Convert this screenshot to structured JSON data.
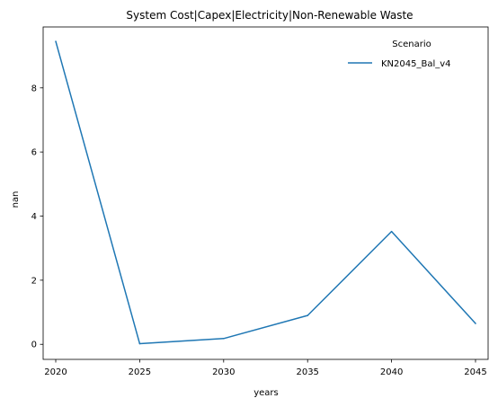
{
  "chart_data": {
    "type": "line",
    "title": "System Cost|Capex|Electricity|Non-Renewable Waste",
    "xlabel": "years",
    "ylabel": "nan",
    "x": [
      2020,
      2025,
      2030,
      2035,
      2040,
      2045
    ],
    "xticks": [
      "2020",
      "2025",
      "2030",
      "2035",
      "2040",
      "2045"
    ],
    "yticks": [
      "0",
      "2",
      "4",
      "6",
      "8"
    ],
    "xlim": [
      2019.25,
      2045.75
    ],
    "ylim": [
      -0.47,
      9.9
    ],
    "grid": false,
    "legend": {
      "title": "Scenario",
      "placement": "top-right"
    },
    "series": [
      {
        "name": "KN2045_Bal_v4",
        "color": "#1f77b4",
        "values": [
          9.45,
          0.02,
          0.18,
          0.9,
          3.52,
          0.65
        ]
      }
    ]
  }
}
